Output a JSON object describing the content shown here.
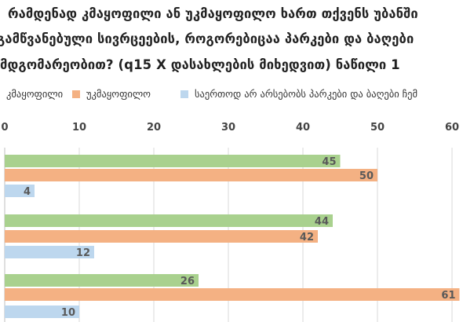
{
  "title_lines": [
    "რამდენად კმაყოფილი ან უკმაყოფილო ხართ თქვენს უბანში",
    "გამწვანებული სივრცეების, როგორებიცაა პარკები და ბაღები",
    "მდგომარეობით? (q15 X დასახლების მიხედვით) ნაწილი 1"
  ],
  "chart_data": {
    "type": "bar",
    "orientation": "horizontal",
    "title": "რამდენად კმაყოფილი ან უკმაყოფილო ხართ თქვენს უბანში გამწვანებული სივრცეების, როგორებიცაა პარკები და ბაღები მდგომარეობით? (q15 X დასახლების მიხედვით) ნაწილი 1",
    "categories": [
      "",
      "",
      ""
    ],
    "series": [
      {
        "name": "კმაყოფილი",
        "color": "#a9d18e",
        "values": [
          45,
          44,
          26
        ]
      },
      {
        "name": "უკმაყოფილო",
        "color": "#f4b183",
        "values": [
          50,
          42,
          61
        ]
      },
      {
        "name": "საერთოდ არ არსებობს პარკები და ბაღები ჩემ",
        "color": "#bdd7ee",
        "values": [
          4,
          12,
          10
        ]
      }
    ],
    "data_labels": [
      [
        "45",
        "50",
        "4"
      ],
      [
        "44",
        "42",
        "12"
      ],
      [
        "26",
        "61",
        "10"
      ]
    ],
    "x_ticks": [
      "0",
      "10",
      "20",
      "30",
      "40",
      "50",
      "60"
    ],
    "xlim": [
      0,
      61
    ],
    "grid": true,
    "legend_position": "top"
  }
}
